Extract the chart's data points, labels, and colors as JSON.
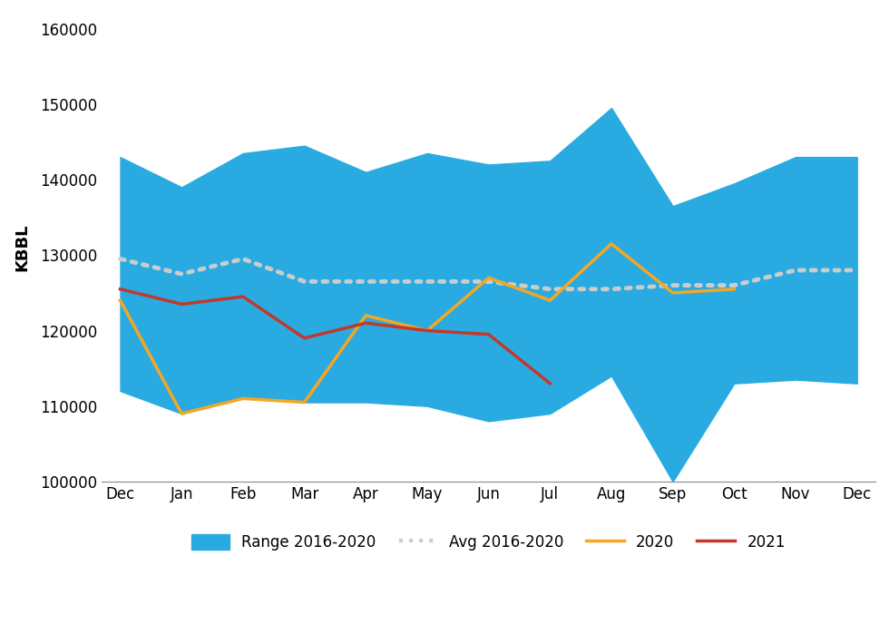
{
  "months": [
    "Dec",
    "Jan",
    "Feb",
    "Mar",
    "Apr",
    "May",
    "Jun",
    "Jul",
    "Aug",
    "Sep",
    "Oct",
    "Nov",
    "Dec"
  ],
  "range_high": [
    143000,
    139000,
    143500,
    144500,
    141000,
    143500,
    142000,
    142500,
    149500,
    136500,
    139500,
    143000,
    143000
  ],
  "range_low": [
    112000,
    109000,
    111000,
    110500,
    110500,
    110000,
    108000,
    109000,
    114000,
    100000,
    113000,
    113500,
    113000
  ],
  "avg": [
    129500,
    127500,
    129500,
    126500,
    126500,
    126500,
    126500,
    125500,
    125500,
    126000,
    126000,
    128000,
    128000
  ],
  "x_2020": [
    0,
    1,
    2,
    3,
    4,
    5,
    6,
    7,
    8,
    9,
    10
  ],
  "y_2020": [
    124000,
    109000,
    111000,
    110500,
    122000,
    120000,
    127000,
    124000,
    131500,
    125000,
    125500
  ],
  "x_2021": [
    0,
    1,
    2,
    3,
    4,
    5,
    6,
    7
  ],
  "y_2021": [
    125500,
    123500,
    124500,
    119000,
    121000,
    120000,
    119500,
    113000
  ],
  "blue_color": "#29ABE2",
  "orange_color": "#F5A623",
  "red_color": "#C0392B",
  "avg_dot_color": "#CCCCCC",
  "ylabel": "KBBL",
  "ylim": [
    100000,
    162000
  ],
  "yticks": [
    100000,
    110000,
    120000,
    130000,
    140000,
    150000,
    160000
  ],
  "background_color": "#FFFFFF"
}
